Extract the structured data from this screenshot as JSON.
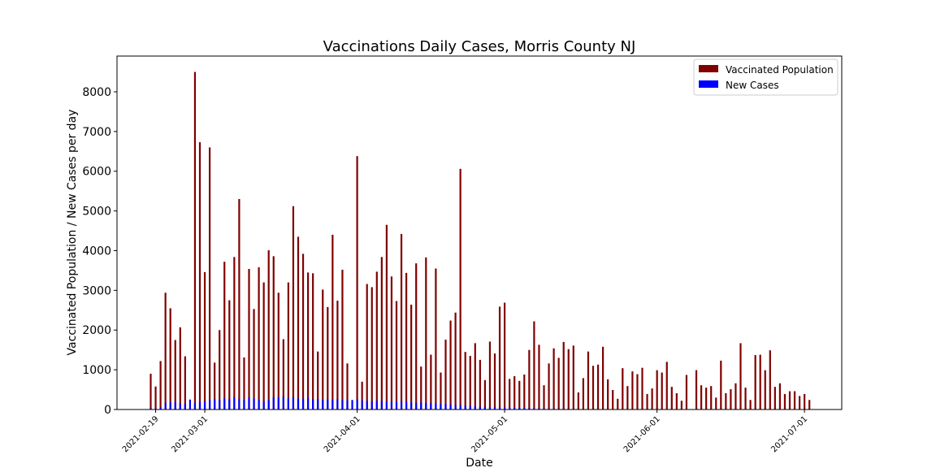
{
  "chart_data": {
    "type": "bar",
    "title": "Vaccinations Daily Cases, Morris County NJ",
    "xlabel": "Date",
    "ylabel": "Vaccinated Population / New Cases per day",
    "x_start": "2021-02-18",
    "ylim": [
      0,
      8900
    ],
    "yticks": [
      0,
      1000,
      2000,
      3000,
      4000,
      5000,
      6000,
      7000,
      8000
    ],
    "xticks": [
      "2021-02-19",
      "2021-03-01",
      "2021-04-01",
      "2021-05-01",
      "2021-06-01",
      "2021-07-01"
    ],
    "legend_position": "top-right",
    "grid": false,
    "series": [
      {
        "name": "Vaccinated Population",
        "color": "#800000",
        "values": [
          900,
          580,
          1220,
          2940,
          2550,
          1750,
          2070,
          1340,
          0,
          8500,
          6730,
          3460,
          6600,
          1180,
          2000,
          3720,
          2750,
          3840,
          5300,
          1310,
          3540,
          2530,
          3580,
          3200,
          4010,
          3860,
          2940,
          1770,
          3200,
          5120,
          4350,
          3920,
          3450,
          3430,
          1460,
          3020,
          2580,
          4400,
          2740,
          3520,
          1160,
          0,
          6380,
          700,
          3160,
          3080,
          3470,
          3840,
          4650,
          3350,
          2730,
          4420,
          3440,
          2640,
          3680,
          1080,
          3830,
          1380,
          3550,
          930,
          1760,
          2240,
          2440,
          6060,
          1450,
          1350,
          1670,
          1250,
          740,
          1710,
          1410,
          2590,
          2690,
          770,
          840,
          720,
          880,
          1500,
          2220,
          1630,
          610,
          1160,
          1540,
          1300,
          1700,
          1520,
          1610,
          430,
          790,
          1460,
          1100,
          1130,
          1580,
          760,
          490,
          270,
          1040,
          590,
          960,
          890,
          1050,
          390,
          530,
          990,
          930,
          1200,
          570,
          410,
          220,
          870,
          0,
          990,
          610,
          550,
          590,
          300,
          1230,
          410,
          510,
          660,
          1670,
          550,
          240,
          1370,
          1380,
          990,
          1490,
          570,
          660,
          390,
          460,
          460,
          340,
          390,
          240
        ]
      },
      {
        "name": "New Cases",
        "color": "#0000ff",
        "values": [
          30,
          20,
          60,
          170,
          180,
          190,
          160,
          150,
          250,
          170,
          190,
          210,
          240,
          260,
          240,
          280,
          260,
          310,
          260,
          240,
          300,
          280,
          250,
          210,
          240,
          310,
          300,
          330,
          280,
          310,
          280,
          270,
          290,
          260,
          260,
          240,
          250,
          250,
          260,
          240,
          230,
          240,
          250,
          230,
          220,
          210,
          220,
          220,
          200,
          200,
          190,
          210,
          200,
          180,
          170,
          180,
          170,
          160,
          150,
          140,
          140,
          130,
          120,
          110,
          100,
          90,
          80,
          70,
          70,
          60,
          60,
          55,
          50,
          45,
          40,
          40,
          35,
          30,
          30,
          25,
          25,
          20,
          20,
          20,
          20,
          15,
          15,
          15,
          15,
          12,
          12,
          12,
          10,
          10,
          10,
          10,
          10,
          8,
          8,
          8,
          8,
          8,
          6,
          6,
          6,
          6,
          6,
          5,
          5,
          5,
          5,
          5,
          5,
          5,
          5,
          5,
          5,
          5,
          5,
          5,
          5,
          5,
          5,
          5,
          5,
          5,
          5,
          5,
          5,
          5,
          5,
          5,
          5,
          5,
          5,
          5,
          5,
          5,
          5
        ]
      }
    ]
  }
}
